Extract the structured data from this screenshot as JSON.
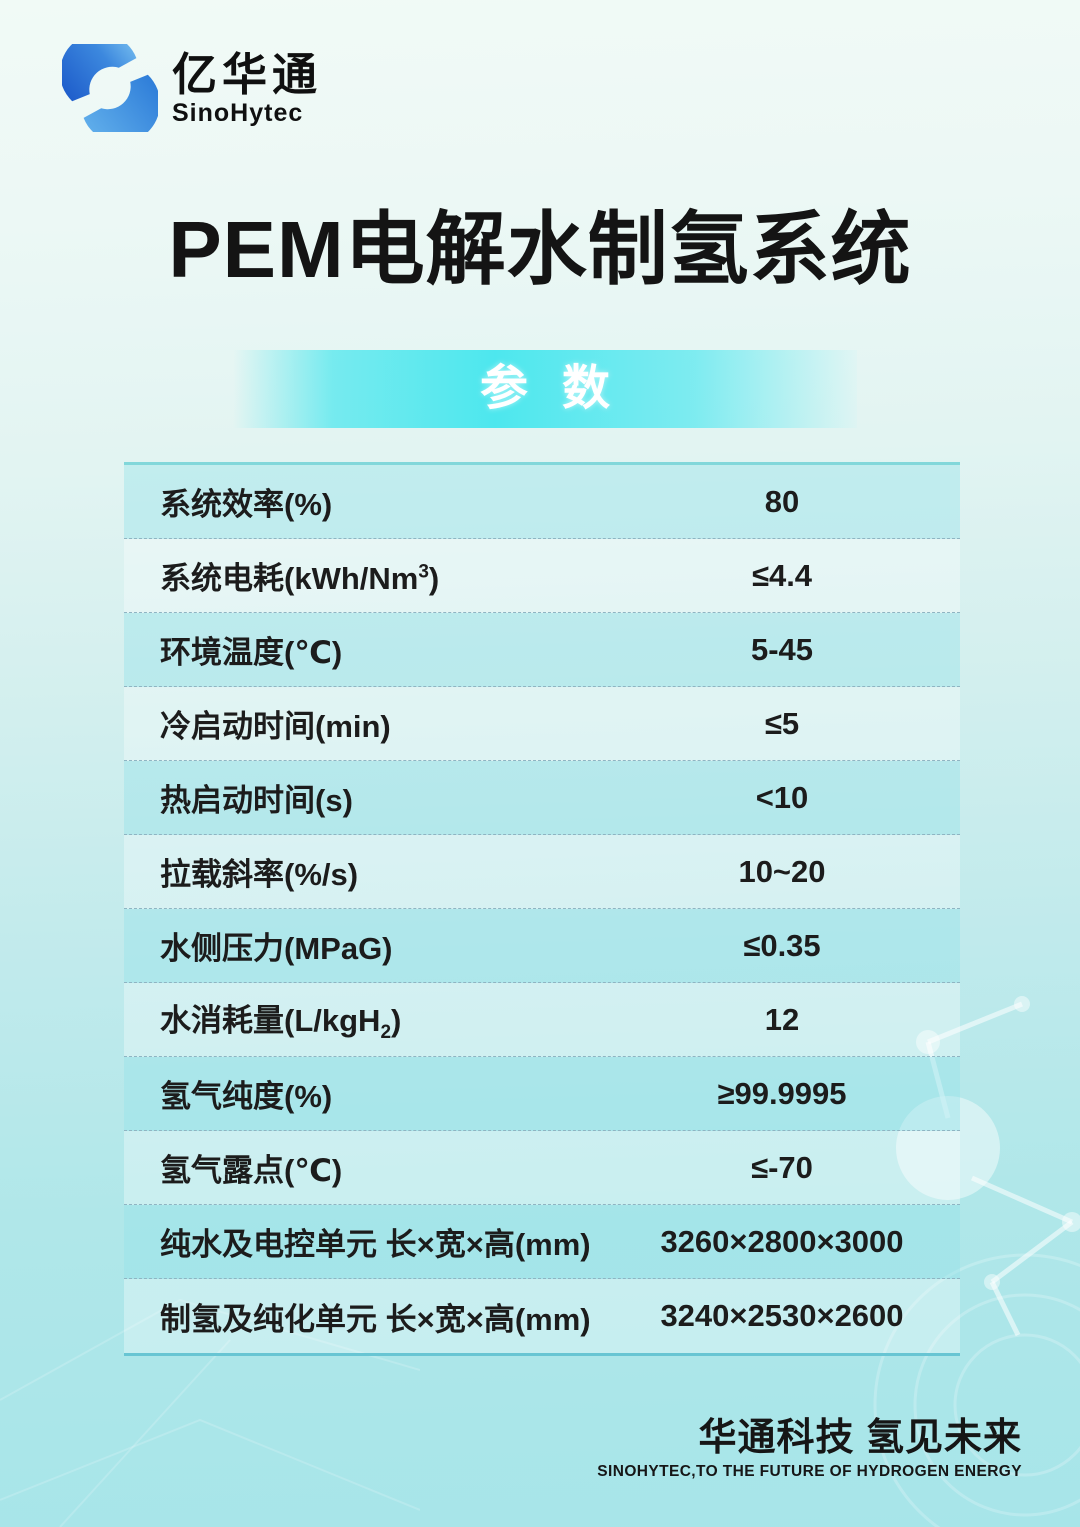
{
  "colors": {
    "bg_top": "#f1faf6",
    "bg_bottom": "#a7e5e9",
    "accent_cyan": "#4de7ee",
    "table_line_top": "#82d7da",
    "table_line_bottom": "#68c5d3",
    "table_dash": "#8fb4c2",
    "brand_blue_dark": "#1f5ecb",
    "brand_blue_light": "#79c0f0",
    "text_dark": "#141414",
    "banner_text": "#ffffff"
  },
  "icons": {
    "logo": "sinohytec-swirl-icon",
    "molecule": "molecule-decoration",
    "arcs": "concentric-arcs-decoration"
  },
  "logo": {
    "brand_cn": "亿华通",
    "brand_en": "SinoHytec"
  },
  "title": "PEM电解水制氢系统",
  "banner": {
    "label": "参数"
  },
  "table": {
    "rows": [
      {
        "label": "系统效率(%)",
        "value": "80"
      },
      {
        "label": "系统电耗(kWh/Nm",
        "sup": "3",
        "label_post": ")",
        "value": "≤4.4"
      },
      {
        "label": "环境温度(℃)",
        "value": "5-45"
      },
      {
        "label": "冷启动时间(min)",
        "value": "≤5"
      },
      {
        "label": "热启动时间(s)",
        "value": "<10"
      },
      {
        "label": "拉载斜率(%/s)",
        "value": "10~20"
      },
      {
        "label": "水侧压力(MPaG)",
        "value": "≤0.35"
      },
      {
        "label": "水消耗量(L/kgH",
        "sub": "2",
        "label_post": ")",
        "value": "12"
      },
      {
        "label": "氢气纯度(%)",
        "value": "≥99.9995"
      },
      {
        "label": "氢气露点(℃)",
        "value": "≤-70"
      },
      {
        "label": "纯水及电控单元 长×宽×高(mm)",
        "value": "3260×2800×3000"
      },
      {
        "label": "制氢及纯化单元 长×宽×高(mm)",
        "value": "3240×2530×2600"
      }
    ]
  },
  "footer": {
    "slogan_cn": "华通科技 氢见未来",
    "slogan_en": "SINOHYTEC,TO THE FUTURE OF HYDROGEN ENERGY"
  }
}
